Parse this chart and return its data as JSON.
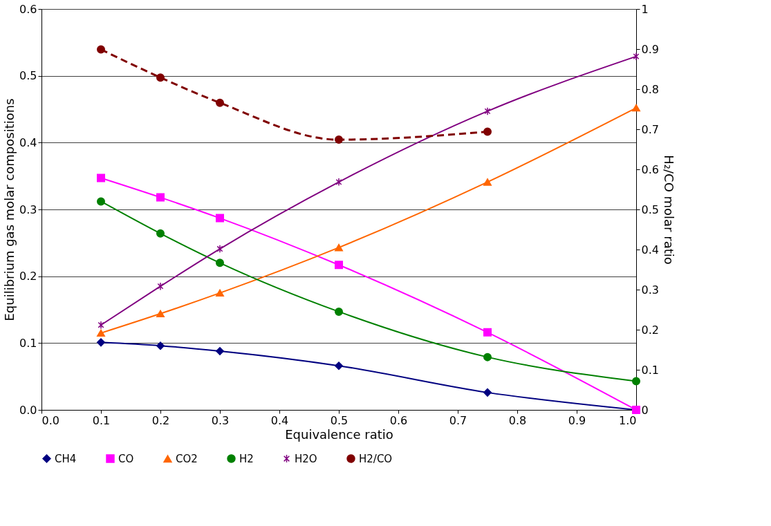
{
  "chart_data": {
    "type": "line",
    "xlabel": "Equivalence ratio",
    "ylabel": "Equilibrium gas molar compositions",
    "y2label": "H₂/CO molar ratio",
    "x": [
      0.1,
      0.2,
      0.3,
      0.5,
      0.75,
      1.0
    ],
    "series": [
      {
        "name": "CH4",
        "color": "#000080",
        "marker": "diamond",
        "line_style": "solid",
        "values": [
          0.101,
          0.096,
          0.088,
          0.066,
          0.026,
          0.0
        ]
      },
      {
        "name": "CO",
        "color": "#ff00ff",
        "marker": "square",
        "line_style": "solid",
        "values": [
          0.347,
          0.318,
          0.287,
          0.217,
          0.116,
          0.0
        ]
      },
      {
        "name": "CO2",
        "color": "#ff6600",
        "marker": "triangle",
        "line_style": "solid",
        "values": [
          0.115,
          0.144,
          0.175,
          0.243,
          0.341,
          0.452
        ]
      },
      {
        "name": "H2",
        "color": "#008000",
        "marker": "circle",
        "line_style": "solid",
        "values": [
          0.312,
          0.264,
          0.22,
          0.147,
          0.079,
          0.043
        ]
      },
      {
        "name": "H2O",
        "color": "#800080",
        "marker": "cross",
        "line_style": "solid",
        "values": [
          0.127,
          0.185,
          0.241,
          0.341,
          0.447,
          0.529
        ]
      },
      {
        "name": "H2/CO",
        "color": "#800000",
        "marker": "circle",
        "line_style": "dashed",
        "axis": "y2",
        "values": [
          0.899,
          0.829,
          0.766,
          0.674,
          0.694,
          null
        ]
      }
    ],
    "xlim": [
      0,
      1
    ],
    "xticks": [
      {
        "value": 0,
        "label": "0.0"
      },
      0.1,
      0.2,
      0.3,
      0.4,
      0.5,
      0.6,
      0.7,
      0.8,
      0.9,
      {
        "value": 1,
        "label": "1.0"
      }
    ],
    "ylim": [
      0,
      0.6
    ],
    "yticks": [
      {
        "value": 0,
        "label": "0.0"
      },
      0.1,
      0.2,
      0.3,
      0.4,
      0.5,
      0.6
    ],
    "y2lim": [
      0,
      1
    ],
    "y2ticks": [
      0,
      0.1,
      0.2,
      0.3,
      0.4,
      0.5,
      0.6,
      0.7,
      0.8,
      0.9,
      1
    ],
    "grid": "y",
    "legend": "bottom"
  }
}
